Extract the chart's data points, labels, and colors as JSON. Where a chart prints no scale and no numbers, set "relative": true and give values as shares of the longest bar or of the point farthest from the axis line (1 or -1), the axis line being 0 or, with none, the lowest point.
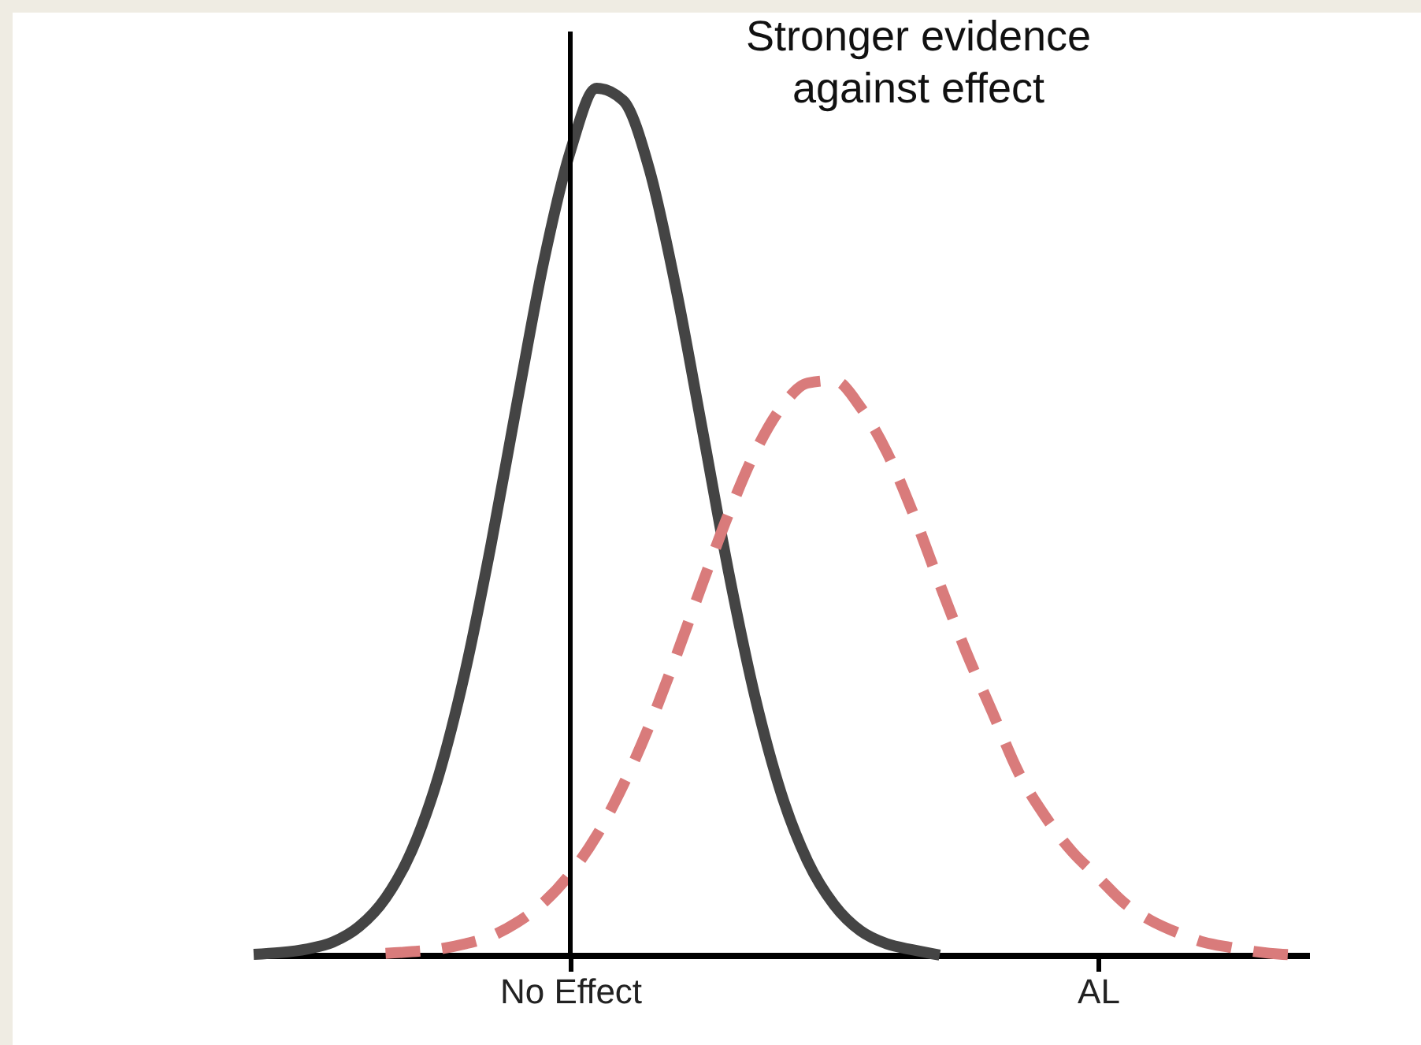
{
  "chart_data": {
    "type": "line",
    "relative": true,
    "categories": [
      null,
      null,
      null,
      null,
      null,
      null,
      null,
      null,
      null,
      null,
      null,
      null,
      "No Effect",
      null,
      null,
      null,
      null,
      null,
      null,
      null,
      null,
      null,
      null,
      null,
      null,
      null,
      null,
      null,
      null,
      null,
      null,
      null,
      "AL",
      null,
      null,
      null,
      null,
      null,
      null,
      null,
      null
    ],
    "series": [
      {
        "color": "#444444",
        "line_style": "solid",
        "values": [
          0.001,
          0.003,
          0.007,
          0.015,
          0.033,
          0.066,
          0.121,
          0.206,
          0.325,
          0.474,
          0.64,
          0.801,
          0.927,
          1,
          0.986,
          0.906,
          0.77,
          0.607,
          0.442,
          0.298,
          0.186,
          0.108,
          0.058,
          0.028,
          0.013,
          0.006,
          0,
          null,
          null,
          null,
          null,
          null,
          null,
          null,
          null,
          null,
          null,
          null,
          null,
          null,
          null
        ]
      },
      {
        "color": "#d97b7b",
        "line_style": "dashed",
        "values": [
          null,
          null,
          null,
          null,
          null,
          0.002,
          0.004,
          0.007,
          0.013,
          0.022,
          0.038,
          0.061,
          0.094,
          0.138,
          0.196,
          0.265,
          0.344,
          0.428,
          0.509,
          0.58,
          0.632,
          0.66,
          0.663,
          0.632,
          0.58,
          0.509,
          0.428,
          0.35,
          0.28,
          0.21,
          0.16,
          0.12,
          0.09,
          0.06,
          0.04,
          0.026,
          0.015,
          0.009,
          0.004,
          0.001,
          0
        ]
      }
    ],
    "ref_lines": [
      {
        "axis": "x",
        "value": "No Effect",
        "color": "#000000"
      }
    ],
    "annotations": [
      "Stronger evidence\nagainst effect"
    ]
  }
}
